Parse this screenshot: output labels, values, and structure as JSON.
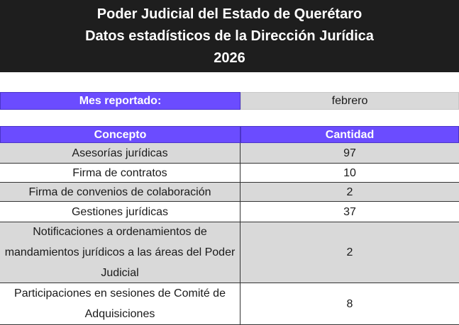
{
  "header": {
    "line1": "Poder Judicial del Estado de Querétaro",
    "line2": "Datos estadísticos de la Dirección Jurídica",
    "line3": "2026"
  },
  "report": {
    "label": "Mes reportado:",
    "value": "febrero"
  },
  "table": {
    "columns": [
      "Concepto",
      "Cantidad"
    ],
    "rows": [
      {
        "concepto": "Asesorías jurídicas",
        "cantidad": "97"
      },
      {
        "concepto": "Firma de contratos",
        "cantidad": "10"
      },
      {
        "concepto": "Firma de convenios de colaboración",
        "cantidad": "2"
      },
      {
        "concepto": "Gestiones jurídicas",
        "cantidad": "37"
      },
      {
        "concepto": "Notificaciones a ordenamientos de mandamientos jurídicos a las áreas del Poder Judicial",
        "cantidad": "2"
      },
      {
        "concepto": "Participaciones en sesiones de Comité de Adquisiciones",
        "cantidad": "8"
      }
    ]
  }
}
